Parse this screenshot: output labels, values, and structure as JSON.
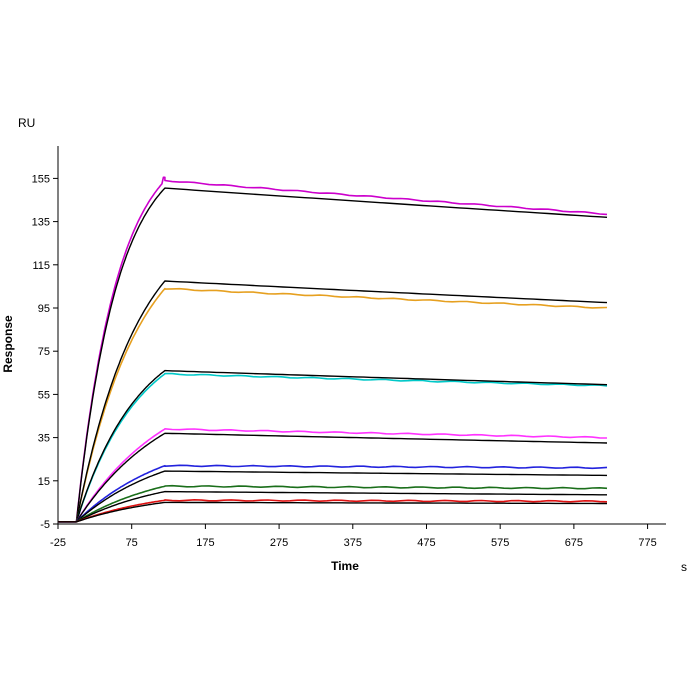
{
  "chart_data": {
    "type": "line",
    "title": "",
    "xlabel": "Time",
    "ylabel": "Response",
    "x_unit": "s",
    "y_unit": "RU",
    "xlim": [
      -25,
      800
    ],
    "ylim": [
      -5,
      170
    ],
    "xticks": [
      -25,
      75,
      175,
      275,
      375,
      475,
      575,
      675,
      775
    ],
    "yticks": [
      -5,
      15,
      35,
      55,
      75,
      95,
      115,
      135,
      155
    ],
    "grid": false,
    "legend": "none",
    "association_start": 0,
    "association_end": 120,
    "dissociation_end": 720,
    "baseline_start": -25,
    "series": [
      {
        "name": "data-1",
        "role": "data",
        "color": "#cc00cc",
        "peak": 154,
        "end": 138.5
      },
      {
        "name": "fit-1",
        "role": "fit",
        "color": "#000000",
        "peak": 150.5,
        "end": 137
      },
      {
        "name": "data-2",
        "role": "data",
        "color": "#e6a020",
        "peak": 104,
        "end": 95
      },
      {
        "name": "fit-2",
        "role": "fit",
        "color": "#000000",
        "peak": 107.5,
        "end": 97.5
      },
      {
        "name": "data-3",
        "role": "data",
        "color": "#00c8c8",
        "peak": 64.5,
        "end": 59
      },
      {
        "name": "fit-3",
        "role": "fit",
        "color": "#000000",
        "peak": 66,
        "end": 59.5
      },
      {
        "name": "data-4",
        "role": "data",
        "color": "#ff33ff",
        "peak": 39,
        "end": 35
      },
      {
        "name": "fit-4",
        "role": "fit",
        "color": "#000000",
        "peak": 37,
        "end": 32.5
      },
      {
        "name": "data-5",
        "role": "data",
        "color": "#2222dd",
        "peak": 22,
        "end": 21
      },
      {
        "name": "fit-5",
        "role": "fit",
        "color": "#000000",
        "peak": 19.5,
        "end": 17.5
      },
      {
        "name": "data-6",
        "role": "data",
        "color": "#1a6e1a",
        "peak": 12.5,
        "end": 11.5
      },
      {
        "name": "fit-6",
        "role": "fit",
        "color": "#000000",
        "peak": 10,
        "end": 8.5
      },
      {
        "name": "data-7",
        "role": "data",
        "color": "#dd1111",
        "peak": 6,
        "end": 5.5
      },
      {
        "name": "fit-7",
        "role": "fit",
        "color": "#000000",
        "peak": 5,
        "end": 4.5
      }
    ]
  }
}
